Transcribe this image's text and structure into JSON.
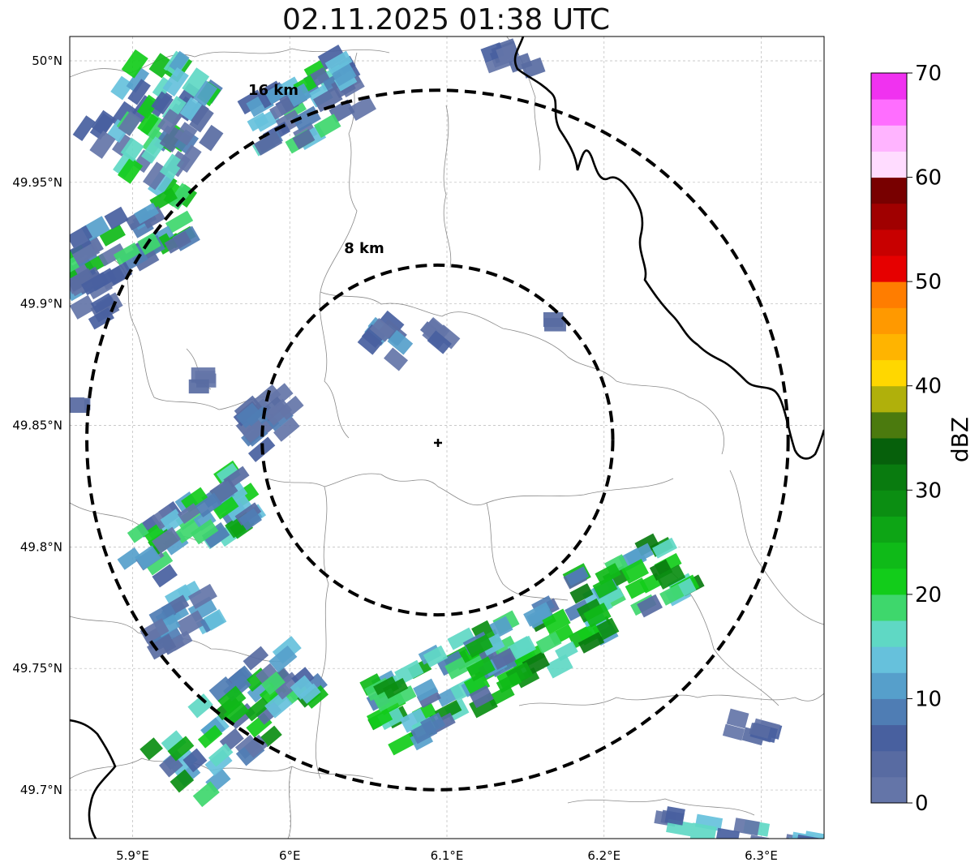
{
  "title": "02.11.2025 01:38 UTC",
  "map": {
    "lon_range": [
      5.86,
      6.34
    ],
    "lat_range": [
      49.68,
      50.01
    ],
    "lon_ticks": [
      {
        "value": 5.9,
        "label": "5.9°E"
      },
      {
        "value": 6.0,
        "label": "6°E"
      },
      {
        "value": 6.1,
        "label": "6.1°E"
      },
      {
        "value": 6.2,
        "label": "6.2°E"
      },
      {
        "value": 6.3,
        "label": "6.3°E"
      }
    ],
    "lat_ticks": [
      {
        "value": 50.0,
        "label": "50°N"
      },
      {
        "value": 49.95,
        "label": "49.95°N"
      },
      {
        "value": 49.9,
        "label": "49.9°N"
      },
      {
        "value": 49.85,
        "label": "49.85°N"
      },
      {
        "value": 49.8,
        "label": "49.8°N"
      },
      {
        "value": 49.75,
        "label": "49.75°N"
      },
      {
        "value": 49.7,
        "label": "49.7°N"
      }
    ],
    "grid": true,
    "radar_site": {
      "lon": 6.094,
      "lat": 49.844
    },
    "range_rings": [
      {
        "label": "8 km",
        "radius_km": 8
      },
      {
        "label": "16 km",
        "radius_km": 16
      }
    ]
  },
  "colorbar": {
    "label": "dBZ",
    "ticks": [
      "0",
      "10",
      "20",
      "30",
      "40",
      "50",
      "60",
      "70"
    ],
    "min": 0,
    "max": 70,
    "step": 2.5,
    "colors": [
      "#6475a8",
      "#586ba2",
      "#48609f",
      "#4f7db4",
      "#569fcb",
      "#66c1dc",
      "#5fd8c4",
      "#3ed76c",
      "#12cc1a",
      "#0fba18",
      "#0da515",
      "#0b8e12",
      "#097b0f",
      "#06600b",
      "#4b7a0e",
      "#b0b00b",
      "#ffd700",
      "#ffb400",
      "#ff9900",
      "#ff7d00",
      "#e60000",
      "#c80000",
      "#a00000",
      "#780000",
      "#ffdcff",
      "#ffb4ff",
      "#ff6eff",
      "#f032f0"
    ]
  }
}
